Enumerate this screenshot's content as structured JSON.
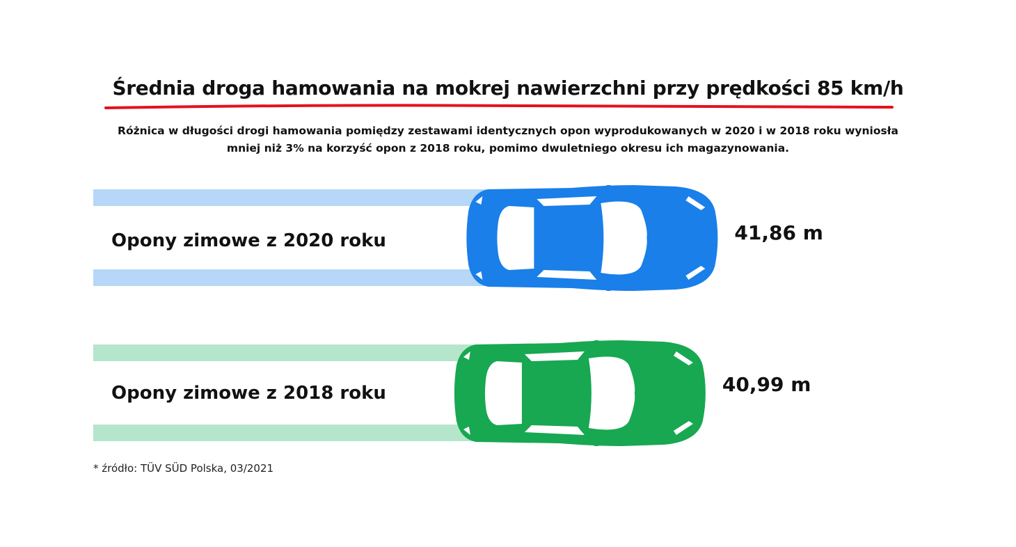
{
  "header": {
    "title": "Średnia droga hamowania na mokrej nawierzchni przy prędkości 85 km/h",
    "subtitle_line1": "Różnica w długości drogi hamowania pomiędzy zestawami identycznych opon wyprodukowanych w 2020 i w 2018 roku wyniosła",
    "subtitle_line2": "mniej niż 3% na korzyść opon z 2018 roku, pomimo dwuletniego okresu ich magazynowania."
  },
  "footnote": "* źródło: TÜV SÜD Polska, 03/2021",
  "colors": {
    "accent_underline": "#e3121b",
    "car_2020": "#1a7fe8",
    "track_2020": "#b6d7f7",
    "car_2018": "#17a851",
    "track_2018": "#b5e6cb"
  },
  "chart_data": {
    "type": "bar",
    "title": "Średnia droga hamowania na mokrej nawierzchni przy prędkości 85 km/h",
    "unit": "m",
    "categories": [
      "Opony zimowe z 2020 roku",
      "Opony zimowe z 2018 roku"
    ],
    "values": [
      41.86,
      40.99
    ],
    "value_labels": [
      "41,86 m",
      "40,99 m"
    ]
  }
}
